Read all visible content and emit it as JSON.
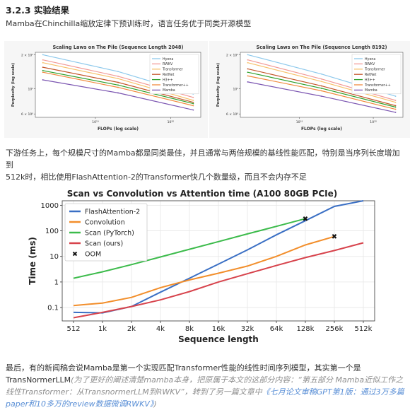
{
  "section_title": "3.2.3 实验结果",
  "intro": "Mamba在Chinchilla缩放定律下预训练时，语言任务优于同类开源模型",
  "downstream": {
    "line1": "下游任务上，每个规模尺寸的Mamba都是同类最佳，并且通常与两倍规模的基线性能匹配，特别是当序列长度增加到",
    "line2": "512k时，相比使用FlashAttention-2的Transformer快几个数量级，而且不会内存不足"
  },
  "closing": {
    "text": "最后，有的新闻稿会说Mamba是第一个实现匹配Transformer性能的线性时间序列模型，其实第一个是TransNormerLLM",
    "note": "(为了更好的阐述清楚mamba本身，把原属于本文的这部分内容：“第五部分 Mamba近似工作之线性Transformer：从TransnormerLLM到RWKV”，转到了另一篇文章中",
    "link": "《七月论文审稿GPT第1版：通过3万多篇paper和10多万的review数据微调RWKV》",
    "end": ")"
  },
  "chart_data": [
    {
      "type": "line",
      "title": "Scaling Laws on The Pile (Sequence Length 2048)",
      "xlabel": "FLOPs (log scale)",
      "ylabel": "Perplexity (log scale)",
      "x_scale": "log",
      "y_scale": "log",
      "xlim": [
        1e+19,
        2e+20
      ],
      "ylim": [
        6,
        20
      ],
      "x_ticks": [
        "10¹⁹",
        "10²⁰"
      ],
      "y_ticks": [
        [
          "2 × 10¹",
          20
        ],
        [
          "10¹",
          10
        ],
        [
          "6 × 10⁰",
          6
        ]
      ],
      "legend_position": "top-right",
      "x": [
        2e+18,
        2e+19,
        2e+20
      ],
      "series": [
        {
          "name": "Hyena",
          "color": "#8ec9ec",
          "values": [
            20.0,
            14.2,
            9.0
          ]
        },
        {
          "name": "RWKV",
          "color": "#f29a97",
          "values": [
            18.0,
            12.9,
            8.4
          ]
        },
        {
          "name": "Transformer",
          "color": "#f7c16b",
          "values": [
            17.0,
            12.3,
            7.9
          ]
        },
        {
          "name": "RetNet",
          "color": "#c4572b",
          "values": [
            15.5,
            11.4,
            7.6
          ]
        },
        {
          "name": "H3++",
          "color": "#2ea02c",
          "values": [
            14.5,
            10.8,
            7.4
          ]
        },
        {
          "name": "Transformer++",
          "color": "#f08a3e",
          "values": [
            14.0,
            10.3,
            7.1
          ]
        },
        {
          "name": "Mamba",
          "color": "#7b55b1",
          "values": [
            12.0,
            9.2,
            6.5
          ]
        }
      ]
    },
    {
      "type": "line",
      "title": "Scaling Laws on The Pile (Sequence Length 8192)",
      "xlabel": "FLOPs (log scale)",
      "ylabel": "Perplexity (log scale)",
      "x_scale": "log",
      "y_scale": "log",
      "xlim": [
        1e+19,
        2e+20
      ],
      "ylim": [
        6,
        20
      ],
      "x_ticks": [
        "10¹⁹",
        "10²⁰"
      ],
      "y_ticks": [
        [
          "2 × 10¹",
          20
        ],
        [
          "10¹",
          10
        ],
        [
          "6 × 10⁰",
          6
        ]
      ],
      "legend_position": "top-right",
      "x": [
        2e+18,
        2e+19,
        2e+20
      ],
      "series": [
        {
          "name": "Hyena",
          "color": "#8ec9ec",
          "values": [
            20.0,
            13.5,
            8.6
          ]
        },
        {
          "name": "RWKV",
          "color": "#f29a97",
          "values": [
            18.0,
            12.2,
            7.9
          ]
        },
        {
          "name": "Transformer",
          "color": "#f7c16b",
          "values": [
            17.0,
            11.6,
            7.6
          ]
        },
        {
          "name": "RetNet",
          "color": "#c4572b",
          "values": [
            15.0,
            10.6,
            7.1
          ]
        },
        {
          "name": "H3++",
          "color": "#2ea02c",
          "values": [
            14.0,
            10.1,
            6.9
          ]
        },
        {
          "name": "Transformer++",
          "color": "#f08a3e",
          "values": [
            13.0,
            9.6,
            6.6
          ]
        },
        {
          "name": "Mamba",
          "color": "#7b55b1",
          "values": [
            11.5,
            8.6,
            6.2
          ]
        }
      ]
    },
    {
      "type": "line",
      "title": "Scan vs Convolution vs Attention time (A100 80GB PCIe)",
      "xlabel": "Sequence length",
      "ylabel": "Time (ms)",
      "y_scale": "log",
      "ylim": [
        0.03,
        1500
      ],
      "y_ticks": [
        [
          "1000",
          1000
        ],
        [
          "100",
          100
        ],
        [
          "10",
          10
        ],
        [
          "1",
          1
        ],
        [
          "0.1",
          0.1
        ]
      ],
      "categories": [
        "512",
        "1k",
        "2k",
        "4k",
        "8k",
        "16k",
        "32k",
        "64k",
        "128k",
        "256k",
        "512k"
      ],
      "legend_position": "top-left",
      "series": [
        {
          "name": "FlashAttention-2",
          "color": "#3a6fc4",
          "values": [
            0.065,
            0.062,
            0.11,
            0.4,
            1.4,
            5,
            18,
            70,
            250,
            900,
            3500
          ]
        },
        {
          "name": "Convolution",
          "color": "#f28e2b",
          "values": [
            0.12,
            0.15,
            0.25,
            0.6,
            1.2,
            2.2,
            4.2,
            10,
            28,
            60,
            null
          ]
        },
        {
          "name": "Scan (PyTorch)",
          "color": "#3cbb4b",
          "values": [
            1.4,
            2.5,
            4.8,
            9.5,
            19,
            38,
            76,
            150,
            300,
            null,
            null
          ]
        },
        {
          "name": "Scan (ours)",
          "color": "#d7434c",
          "values": [
            0.04,
            0.065,
            0.11,
            0.2,
            0.42,
            1.0,
            2.1,
            4.4,
            9,
            17,
            34
          ]
        }
      ],
      "oom": {
        "label": "OOM",
        "points": [
          [
            "128k",
            300
          ],
          [
            "256k",
            60
          ]
        ]
      }
    }
  ]
}
